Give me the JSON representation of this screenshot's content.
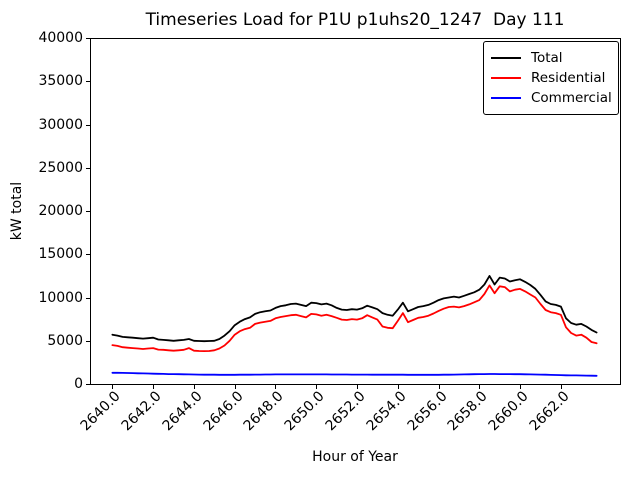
{
  "background": "#ffffff",
  "chart_data": {
    "type": "line",
    "title": "Timeseries Load for P1U p1uhs20_1247  Day 111",
    "xlabel": "Hour of Year",
    "ylabel": "kW total",
    "xlim": [
      2638.9,
      2664.9
    ],
    "ylim": [
      0,
      40000
    ],
    "grid": false,
    "legend_position": "upper right",
    "xticks": [
      2640,
      2642,
      2644,
      2646,
      2648,
      2650,
      2652,
      2654,
      2656,
      2658,
      2660,
      2662
    ],
    "xtick_labels": [
      "2640.0",
      "2642.0",
      "2644.0",
      "2646.0",
      "2648.0",
      "2650.0",
      "2652.0",
      "2654.0",
      "2656.0",
      "2658.0",
      "2660.0",
      "2662.0"
    ],
    "yticks": [
      0,
      5000,
      10000,
      15000,
      20000,
      25000,
      30000,
      35000,
      40000
    ],
    "ytick_labels": [
      "0",
      "5000",
      "10000",
      "15000",
      "20000",
      "25000",
      "30000",
      "35000",
      "40000"
    ],
    "x_start": 2640.0,
    "x_step": 0.25,
    "series": [
      {
        "name": "Total",
        "color": "#000000",
        "values": [
          5700,
          5600,
          5450,
          5400,
          5350,
          5300,
          5250,
          5300,
          5350,
          5150,
          5100,
          5050,
          5000,
          5050,
          5100,
          5200,
          5000,
          4970,
          4950,
          4970,
          5000,
          5200,
          5600,
          6100,
          6800,
          7200,
          7500,
          7700,
          8100,
          8300,
          8400,
          8500,
          8800,
          9000,
          9100,
          9250,
          9300,
          9150,
          9000,
          9400,
          9350,
          9200,
          9300,
          9100,
          8800,
          8600,
          8550,
          8650,
          8600,
          8750,
          9050,
          8850,
          8650,
          8200,
          8000,
          7900,
          8600,
          9400,
          8400,
          8650,
          8900,
          9000,
          9150,
          9400,
          9700,
          9900,
          10000,
          10100,
          10000,
          10200,
          10400,
          10600,
          10900,
          11500,
          12500,
          11500,
          12300,
          12200,
          11850,
          12000,
          12100,
          11800,
          11450,
          11000,
          10300,
          9550,
          9250,
          9150,
          8950,
          7600,
          7050,
          6850,
          6950,
          6650,
          6250,
          5950
        ]
      },
      {
        "name": "Residential",
        "color": "#ff0000",
        "values": [
          4500,
          4400,
          4250,
          4200,
          4150,
          4100,
          4050,
          4100,
          4150,
          3980,
          3950,
          3900,
          3850,
          3900,
          3950,
          4150,
          3850,
          3820,
          3800,
          3820,
          3900,
          4100,
          4450,
          5000,
          5700,
          6100,
          6350,
          6500,
          6950,
          7100,
          7200,
          7300,
          7600,
          7750,
          7850,
          7950,
          8000,
          7850,
          7700,
          8100,
          8050,
          7900,
          8000,
          7850,
          7650,
          7450,
          7400,
          7500,
          7450,
          7600,
          7950,
          7700,
          7450,
          6650,
          6500,
          6450,
          7300,
          8200,
          7150,
          7400,
          7650,
          7750,
          7900,
          8150,
          8450,
          8700,
          8900,
          8950,
          8850,
          9000,
          9200,
          9450,
          9700,
          10400,
          11400,
          10500,
          11300,
          11200,
          10700,
          10900,
          11000,
          10700,
          10350,
          10000,
          9250,
          8550,
          8300,
          8200,
          8000,
          6550,
          5900,
          5600,
          5700,
          5350,
          4850,
          4700
        ]
      },
      {
        "name": "Commercial",
        "color": "#0000ff",
        "values": [
          1300,
          1290,
          1280,
          1270,
          1255,
          1240,
          1225,
          1210,
          1195,
          1180,
          1165,
          1150,
          1140,
          1130,
          1120,
          1110,
          1100,
          1090,
          1080,
          1075,
          1070,
          1065,
          1060,
          1060,
          1065,
          1070,
          1075,
          1080,
          1085,
          1090,
          1095,
          1100,
          1105,
          1110,
          1110,
          1115,
          1115,
          1115,
          1110,
          1110,
          1110,
          1105,
          1105,
          1100,
          1100,
          1095,
          1095,
          1090,
          1090,
          1085,
          1085,
          1080,
          1080,
          1075,
          1075,
          1070,
          1070,
          1070,
          1065,
          1065,
          1065,
          1060,
          1060,
          1060,
          1065,
          1070,
          1080,
          1090,
          1100,
          1110,
          1120,
          1130,
          1140,
          1150,
          1155,
          1155,
          1150,
          1145,
          1140,
          1135,
          1130,
          1120,
          1110,
          1100,
          1085,
          1070,
          1055,
          1040,
          1025,
          1010,
          1000,
          990,
          980,
          970,
          960,
          950
        ]
      }
    ]
  }
}
